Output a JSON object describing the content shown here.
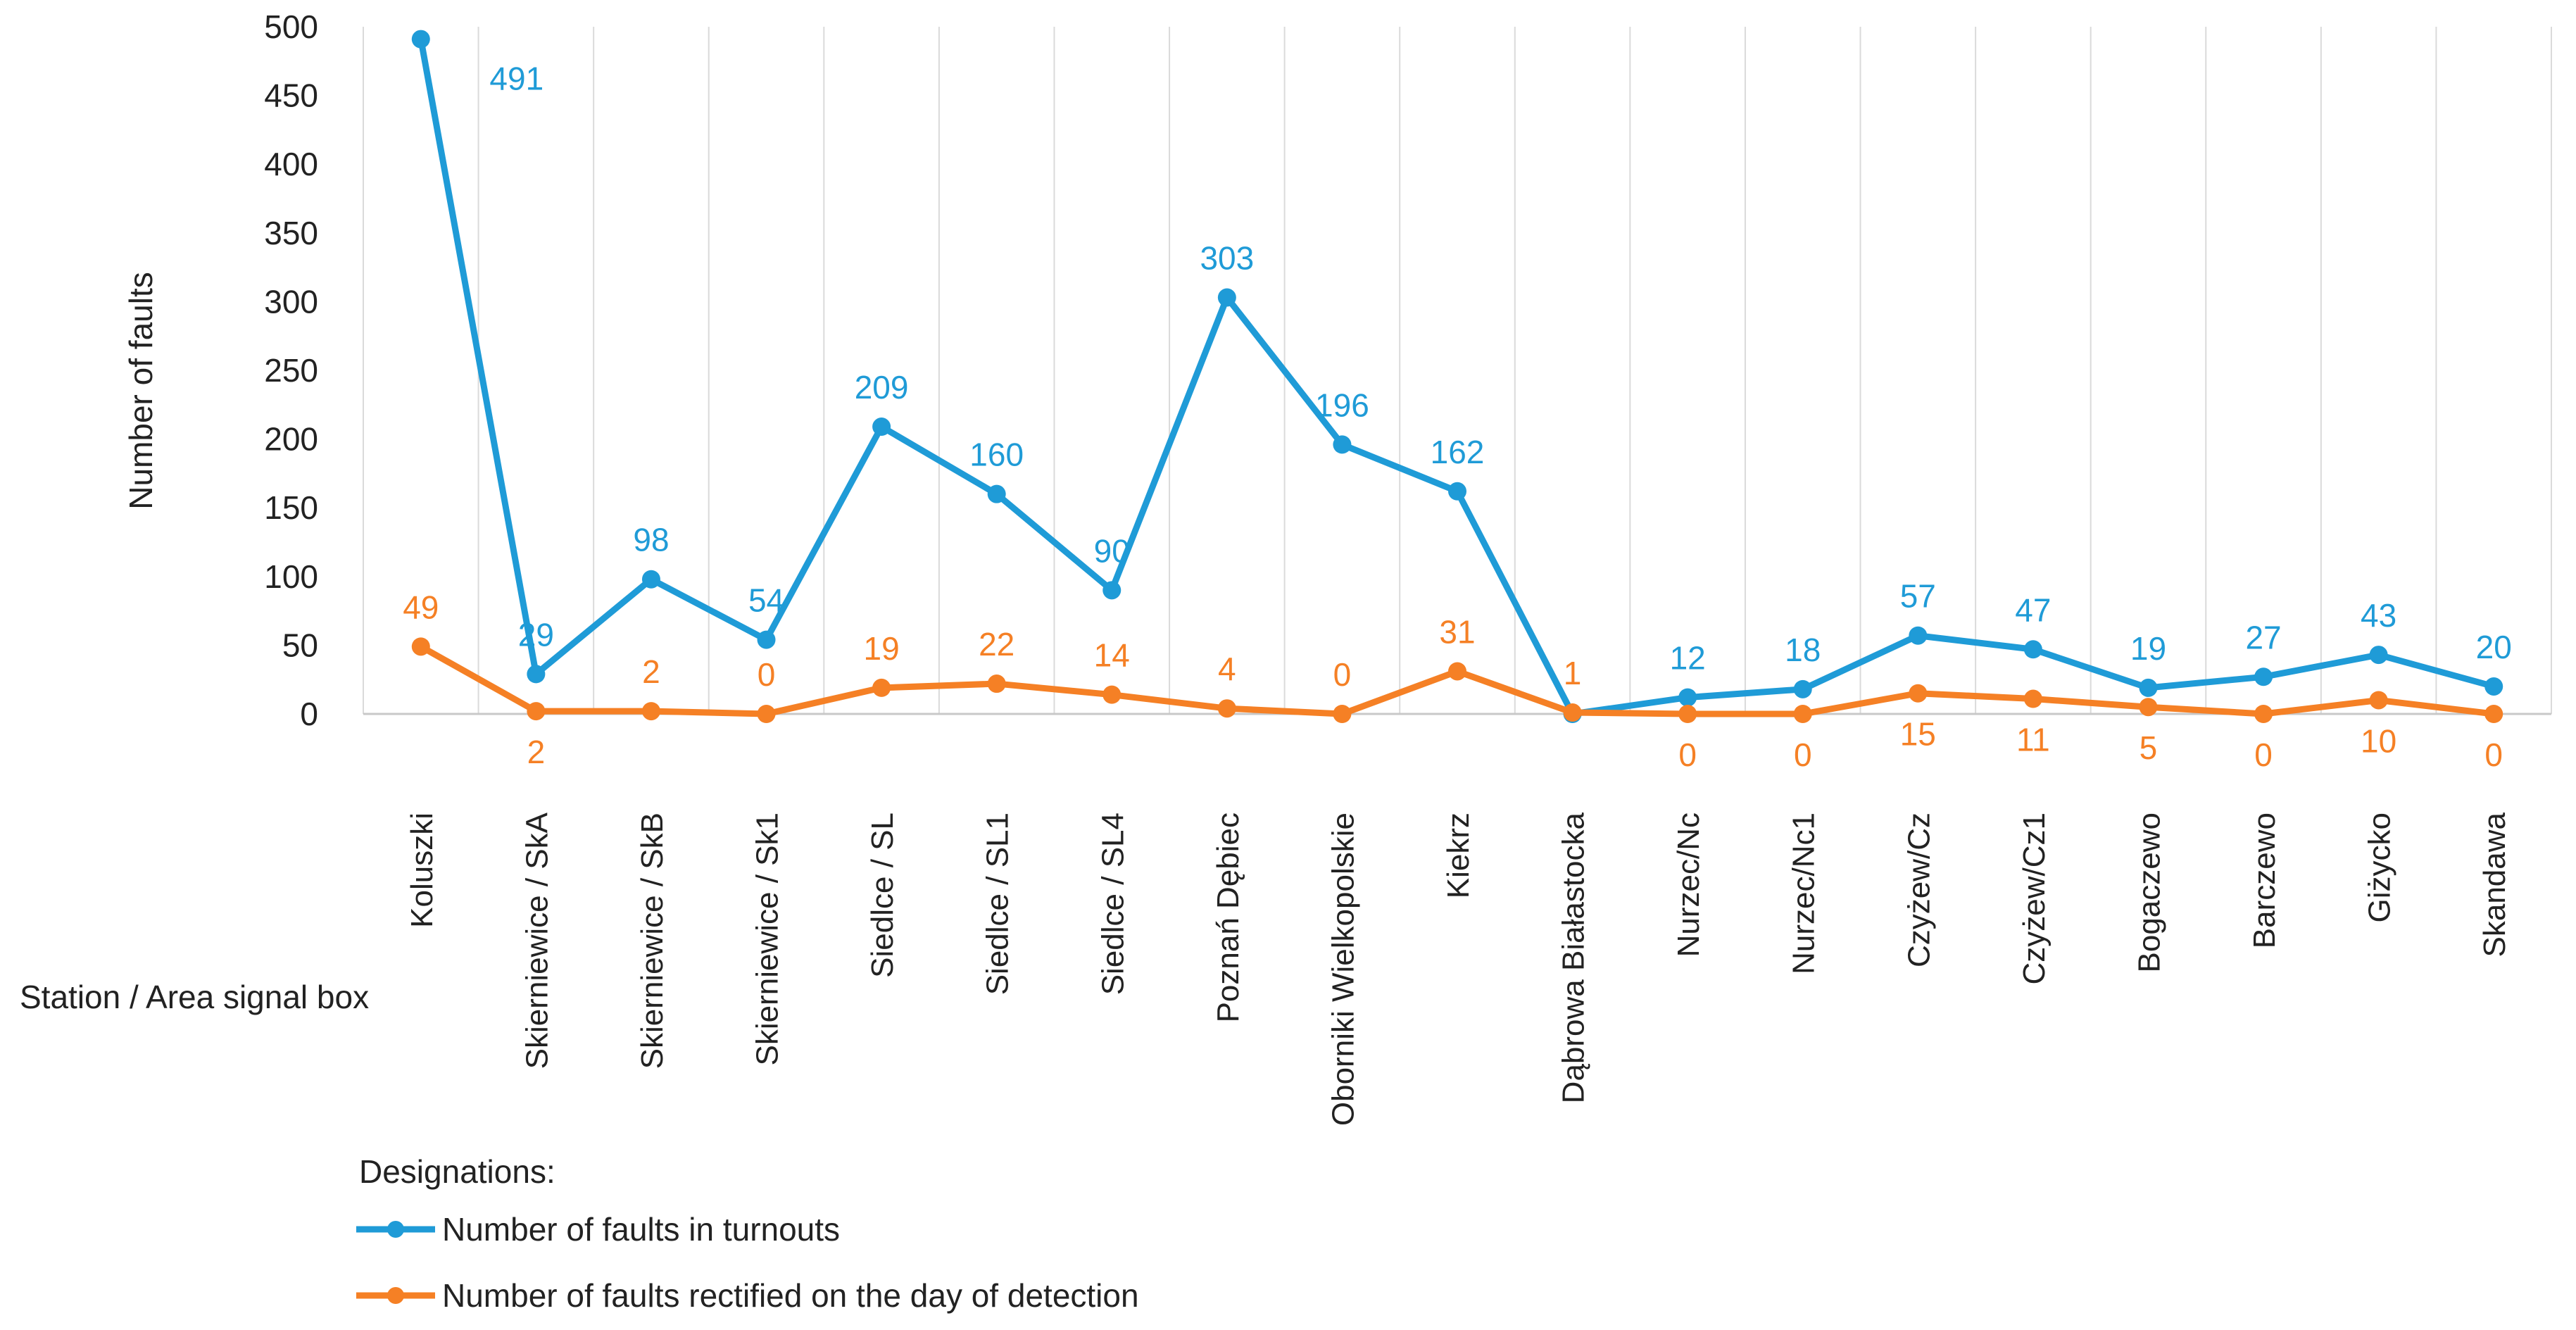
{
  "chart_data": {
    "type": "line",
    "title": "",
    "xlabel": "Station / Area signal box",
    "ylabel": "Number of faults",
    "ylim": [
      0,
      500
    ],
    "yticks": [
      0,
      50,
      100,
      150,
      200,
      250,
      300,
      350,
      400,
      450,
      500
    ],
    "grid": "vertical category separators",
    "legend_position": "bottom-left",
    "legend_title": "Designations:",
    "categories": [
      "Koluszki",
      "Skierniewice / SkA",
      "Skierniewice / SkB",
      "Skierniewice / Sk1",
      "Siedlce / SL",
      "Siedlce / SL1",
      "Siedlce / SL4",
      "Poznań Dębiec",
      "Oborniki Wielkopolskie",
      "Kiekrz",
      "Dąbrowa Białastocka",
      "Nurzec/Nc",
      "Nurzec/Nc1",
      "Czyżew/Cz",
      "Czyżew/Cz1",
      "Bogaczewo",
      "Barczewo",
      "Giżycko",
      "Skandawa"
    ],
    "series": [
      {
        "name": "Number of faults in turnouts",
        "color": "#1f9bd7",
        "values": [
          491,
          29,
          98,
          54,
          209,
          160,
          90,
          303,
          196,
          162,
          0,
          12,
          18,
          57,
          47,
          19,
          27,
          43,
          20
        ],
        "labels": [
          "491",
          "29",
          "98",
          "54",
          "209",
          "160",
          "90",
          "303",
          "196",
          "162",
          "",
          "12",
          "18",
          "57",
          "47",
          "19",
          "27",
          "43",
          "20"
        ]
      },
      {
        "name": "Number of faults rectified on the day of detection",
        "color": "#f58025",
        "values": [
          49,
          2,
          2,
          0,
          19,
          22,
          14,
          4,
          0,
          31,
          1,
          0,
          0,
          15,
          11,
          5,
          0,
          10,
          0
        ],
        "labels": [
          "49",
          "2",
          "2",
          "0",
          "19",
          "22",
          "14",
          "4",
          "0",
          "31",
          "1",
          "0",
          "0",
          "15",
          "11",
          "5",
          "0",
          "10",
          "0"
        ]
      }
    ]
  }
}
